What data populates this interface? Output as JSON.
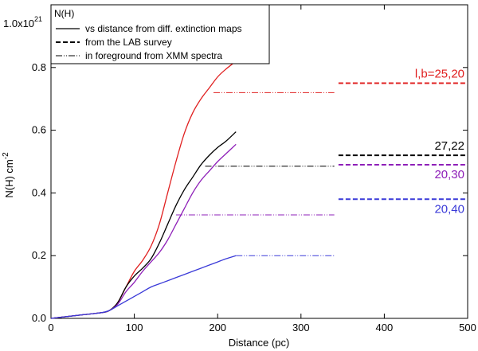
{
  "chart_data": {
    "type": "line",
    "title": "",
    "xlabel": "Distance (pc)",
    "ylabel_main": "N(H) cm",
    "ylabel_sup": "-2",
    "scale_base": "1.0x10",
    "scale_exp": "21",
    "xlim": [
      0,
      500
    ],
    "ylim": [
      0,
      1.0
    ],
    "xticks": [
      0,
      100,
      200,
      300,
      400,
      500
    ],
    "yticks": [
      0.0,
      0.2,
      0.4,
      0.6,
      0.8
    ],
    "ytick_labels": [
      "0.0",
      "0.2",
      "0.4",
      "0.6",
      "0.8"
    ],
    "legend": {
      "title": "N(H)",
      "location": "top-left",
      "entries": [
        {
          "label": "vs distance from diff. extinction maps",
          "style": "solid"
        },
        {
          "label": "from the LAB survey",
          "style": "dashed"
        },
        {
          "label": "in foreground from XMM spectra",
          "style": "dashdotdot"
        }
      ]
    },
    "series": [
      {
        "name": "l,b=25,20",
        "color": "#e02020",
        "annotation": "l,b=25,20",
        "curve_x": [
          0,
          20,
          40,
          60,
          70,
          80,
          90,
          100,
          110,
          120,
          130,
          140,
          150,
          160,
          170,
          180,
          190,
          200,
          210,
          222
        ],
        "curve_y": [
          0.0,
          0.006,
          0.012,
          0.018,
          0.025,
          0.05,
          0.1,
          0.15,
          0.185,
          0.23,
          0.3,
          0.4,
          0.5,
          0.59,
          0.655,
          0.7,
          0.735,
          0.77,
          0.795,
          0.82
        ],
        "xmm_range": [
          195,
          340
        ],
        "xmm_value": 0.72,
        "lab_range": [
          345,
          500
        ],
        "lab_value": 0.75
      },
      {
        "name": "27,22",
        "color": "#000000",
        "annotation": "27,22",
        "curve_x": [
          0,
          20,
          40,
          60,
          70,
          80,
          90,
          100,
          110,
          120,
          130,
          140,
          150,
          160,
          170,
          180,
          190,
          200,
          210,
          222
        ],
        "curve_y": [
          0.0,
          0.006,
          0.012,
          0.018,
          0.025,
          0.05,
          0.1,
          0.135,
          0.16,
          0.19,
          0.24,
          0.3,
          0.36,
          0.41,
          0.45,
          0.49,
          0.52,
          0.545,
          0.565,
          0.595
        ],
        "xmm_range": [
          185,
          340
        ],
        "xmm_value": 0.485,
        "lab_range": [
          345,
          500
        ],
        "lab_value": 0.52
      },
      {
        "name": "20,30",
        "color": "#8e1fb8",
        "annotation": "20,30",
        "curve_x": [
          0,
          20,
          40,
          60,
          70,
          80,
          90,
          100,
          110,
          120,
          130,
          140,
          150,
          160,
          170,
          180,
          190,
          200,
          210,
          222
        ],
        "curve_y": [
          0.0,
          0.006,
          0.012,
          0.018,
          0.025,
          0.045,
          0.085,
          0.115,
          0.15,
          0.18,
          0.21,
          0.25,
          0.3,
          0.35,
          0.4,
          0.44,
          0.47,
          0.5,
          0.525,
          0.555
        ],
        "xmm_range": [
          150,
          340
        ],
        "xmm_value": 0.33,
        "lab_range": [
          345,
          500
        ],
        "lab_value": 0.49
      },
      {
        "name": "20,40",
        "color": "#3a3ad8",
        "annotation": "20,40",
        "curve_x": [
          0,
          20,
          40,
          60,
          70,
          80,
          90,
          100,
          110,
          120,
          130,
          140,
          150,
          160,
          170,
          180,
          190,
          200,
          210,
          222
        ],
        "curve_y": [
          0.0,
          0.006,
          0.012,
          0.018,
          0.025,
          0.04,
          0.055,
          0.07,
          0.085,
          0.1,
          0.11,
          0.12,
          0.13,
          0.14,
          0.15,
          0.16,
          0.17,
          0.18,
          0.19,
          0.2
        ],
        "xmm_range": [
          222,
          340
        ],
        "xmm_value": 0.2,
        "lab_range": [
          345,
          500
        ],
        "lab_value": 0.38
      }
    ]
  }
}
